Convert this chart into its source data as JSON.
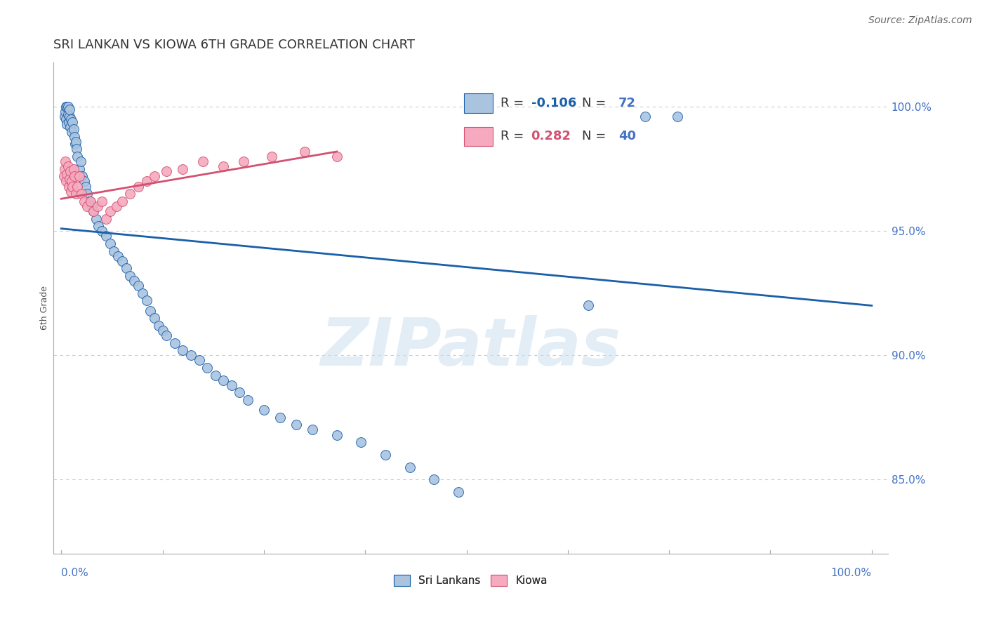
{
  "title": "SRI LANKAN VS KIOWA 6TH GRADE CORRELATION CHART",
  "source": "Source: ZipAtlas.com",
  "ylabel": "6th Grade",
  "legend_sri_r": "-0.106",
  "legend_sri_n": "72",
  "legend_kiowa_r": "0.282",
  "legend_kiowa_n": "40",
  "watermark": "ZIPatlas",
  "y_ticks": [
    100.0,
    95.0,
    90.0,
    85.0
  ],
  "y_tick_labels": [
    "100.0%",
    "95.0%",
    "90.0%",
    "85.0%"
  ],
  "ylim_min": 82.0,
  "ylim_max": 101.8,
  "xlim_min": -0.01,
  "xlim_max": 1.02,
  "sri_color": "#aac4e0",
  "kiowa_color": "#f5aabf",
  "sri_line_color": "#1a5fa8",
  "kiowa_line_color": "#d45070",
  "sri_scatter_x": [
    0.004,
    0.005,
    0.006,
    0.006,
    0.007,
    0.007,
    0.008,
    0.008,
    0.009,
    0.01,
    0.01,
    0.011,
    0.012,
    0.013,
    0.014,
    0.015,
    0.016,
    0.017,
    0.018,
    0.019,
    0.02,
    0.022,
    0.024,
    0.026,
    0.028,
    0.03,
    0.032,
    0.035,
    0.038,
    0.04,
    0.043,
    0.046,
    0.05,
    0.055,
    0.06,
    0.065,
    0.07,
    0.075,
    0.08,
    0.085,
    0.09,
    0.095,
    0.1,
    0.105,
    0.11,
    0.115,
    0.12,
    0.125,
    0.13,
    0.14,
    0.15,
    0.16,
    0.17,
    0.18,
    0.19,
    0.2,
    0.21,
    0.22,
    0.23,
    0.25,
    0.27,
    0.29,
    0.31,
    0.34,
    0.37,
    0.4,
    0.43,
    0.46,
    0.49,
    0.65,
    0.72,
    0.76
  ],
  "sri_scatter_y": [
    99.6,
    99.8,
    99.5,
    100.0,
    99.3,
    100.0,
    99.7,
    100.0,
    99.4,
    99.6,
    99.9,
    99.2,
    99.5,
    99.0,
    99.4,
    99.1,
    98.8,
    98.5,
    98.6,
    98.3,
    98.0,
    97.5,
    97.8,
    97.2,
    97.0,
    96.8,
    96.5,
    96.2,
    96.0,
    95.8,
    95.5,
    95.2,
    95.0,
    94.8,
    94.5,
    94.2,
    94.0,
    93.8,
    93.5,
    93.2,
    93.0,
    92.8,
    92.5,
    92.2,
    91.8,
    91.5,
    91.2,
    91.0,
    90.8,
    90.5,
    90.2,
    90.0,
    89.8,
    89.5,
    89.2,
    89.0,
    88.8,
    88.5,
    88.2,
    87.8,
    87.5,
    87.2,
    87.0,
    86.8,
    86.5,
    86.0,
    85.5,
    85.0,
    84.5,
    92.0,
    99.6,
    99.6
  ],
  "kiowa_scatter_x": [
    0.003,
    0.004,
    0.005,
    0.006,
    0.007,
    0.008,
    0.009,
    0.01,
    0.011,
    0.012,
    0.013,
    0.014,
    0.015,
    0.016,
    0.018,
    0.02,
    0.022,
    0.025,
    0.028,
    0.032,
    0.036,
    0.04,
    0.045,
    0.05,
    0.055,
    0.06,
    0.068,
    0.075,
    0.085,
    0.095,
    0.105,
    0.115,
    0.13,
    0.15,
    0.175,
    0.2,
    0.225,
    0.26,
    0.3,
    0.34
  ],
  "kiowa_scatter_y": [
    97.2,
    97.5,
    97.8,
    97.0,
    97.3,
    97.6,
    96.8,
    97.1,
    97.4,
    96.6,
    97.0,
    96.8,
    97.5,
    97.2,
    96.5,
    96.8,
    97.2,
    96.5,
    96.2,
    96.0,
    96.2,
    95.8,
    96.0,
    96.2,
    95.5,
    95.8,
    96.0,
    96.2,
    96.5,
    96.8,
    97.0,
    97.2,
    97.4,
    97.5,
    97.8,
    97.6,
    97.8,
    98.0,
    98.2,
    98.0
  ],
  "sri_trend_x": [
    0.0,
    1.0
  ],
  "sri_trend_y": [
    95.1,
    92.0
  ],
  "kiowa_trend_x": [
    0.0,
    0.34
  ],
  "kiowa_trend_y": [
    96.3,
    98.2
  ],
  "background_color": "#ffffff",
  "grid_color": "#cccccc",
  "axis_color": "#aaaaaa",
  "tick_color": "#4472c4",
  "title_color": "#333333",
  "title_fontsize": 13,
  "source_fontsize": 10,
  "legend_fontsize": 14,
  "ylabel_fontsize": 9,
  "ytick_fontsize": 11,
  "marker_size": 100
}
